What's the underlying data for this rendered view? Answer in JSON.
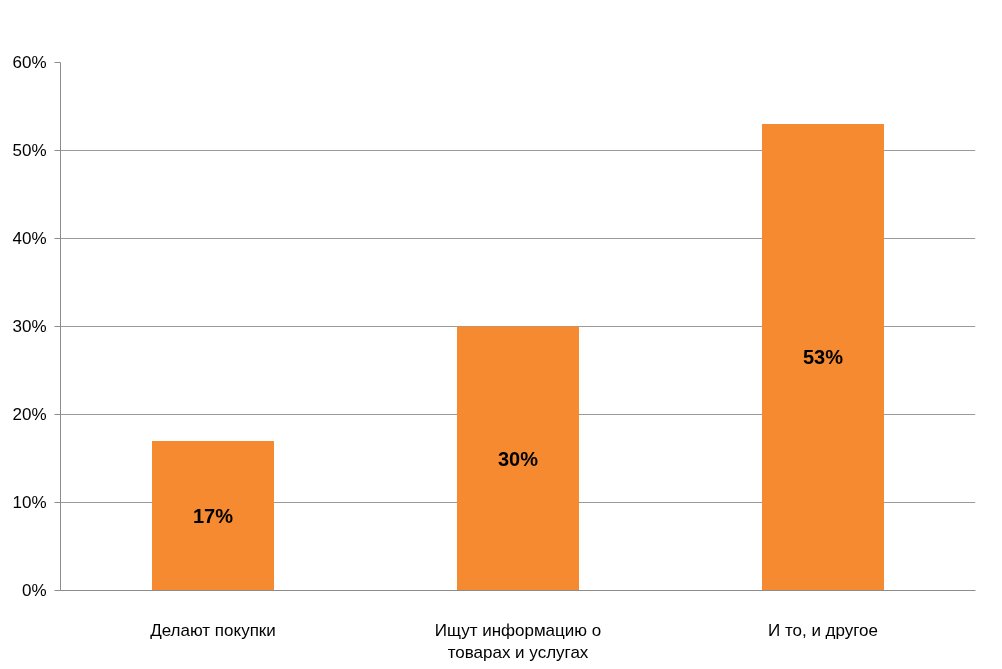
{
  "chart_data": {
    "type": "bar",
    "categories": [
      "Делают покупки",
      "Ищут информацию о товарах и услугах",
      "И то, и другое"
    ],
    "values": [
      17,
      30,
      53
    ],
    "color": "#f58a31",
    "value_labels": [
      "17%",
      "30%",
      "53%"
    ],
    "ylim": [
      0,
      60
    ],
    "yticks": [
      {
        "value": 0,
        "label": "0%"
      },
      {
        "value": 10,
        "label": "10%"
      },
      {
        "value": 20,
        "label": "20%"
      },
      {
        "value": 30,
        "label": "30%"
      },
      {
        "value": 40,
        "label": "40%"
      },
      {
        "value": 50,
        "label": "50%"
      },
      {
        "value": 60,
        "label": "60%"
      }
    ],
    "grid": "y"
  }
}
